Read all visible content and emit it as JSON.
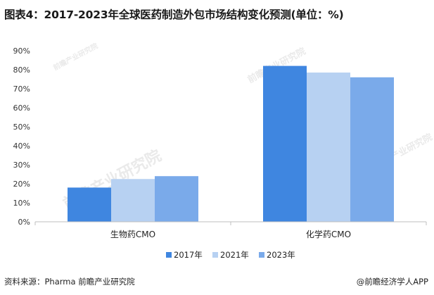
{
  "title": "图表4：2017-2023年全球医药制造外包市场结构变化预测(单位：%)",
  "source": "资料来源：Pharma 前瞻产业研究院",
  "brand": "@前瞻经济学人APP",
  "watermark": "前瞻产业研究院",
  "chart_data": {
    "type": "bar",
    "categories": [
      "生物药CMO",
      "化学药CMO"
    ],
    "series": [
      {
        "name": "2017年",
        "values": [
          18,
          82
        ],
        "color": "#3f86e0"
      },
      {
        "name": "2021年",
        "values": [
          22.5,
          78.5
        ],
        "color": "#b7d1f2"
      },
      {
        "name": "2023年",
        "values": [
          24,
          76
        ],
        "color": "#7aaaea"
      }
    ],
    "y_ticks": [
      "0%",
      "10%",
      "20%",
      "30%",
      "40%",
      "50%",
      "60%",
      "70%",
      "80%",
      "90%"
    ],
    "ylim": [
      0,
      90
    ],
    "grid": false,
    "legend_position": "bottom"
  }
}
